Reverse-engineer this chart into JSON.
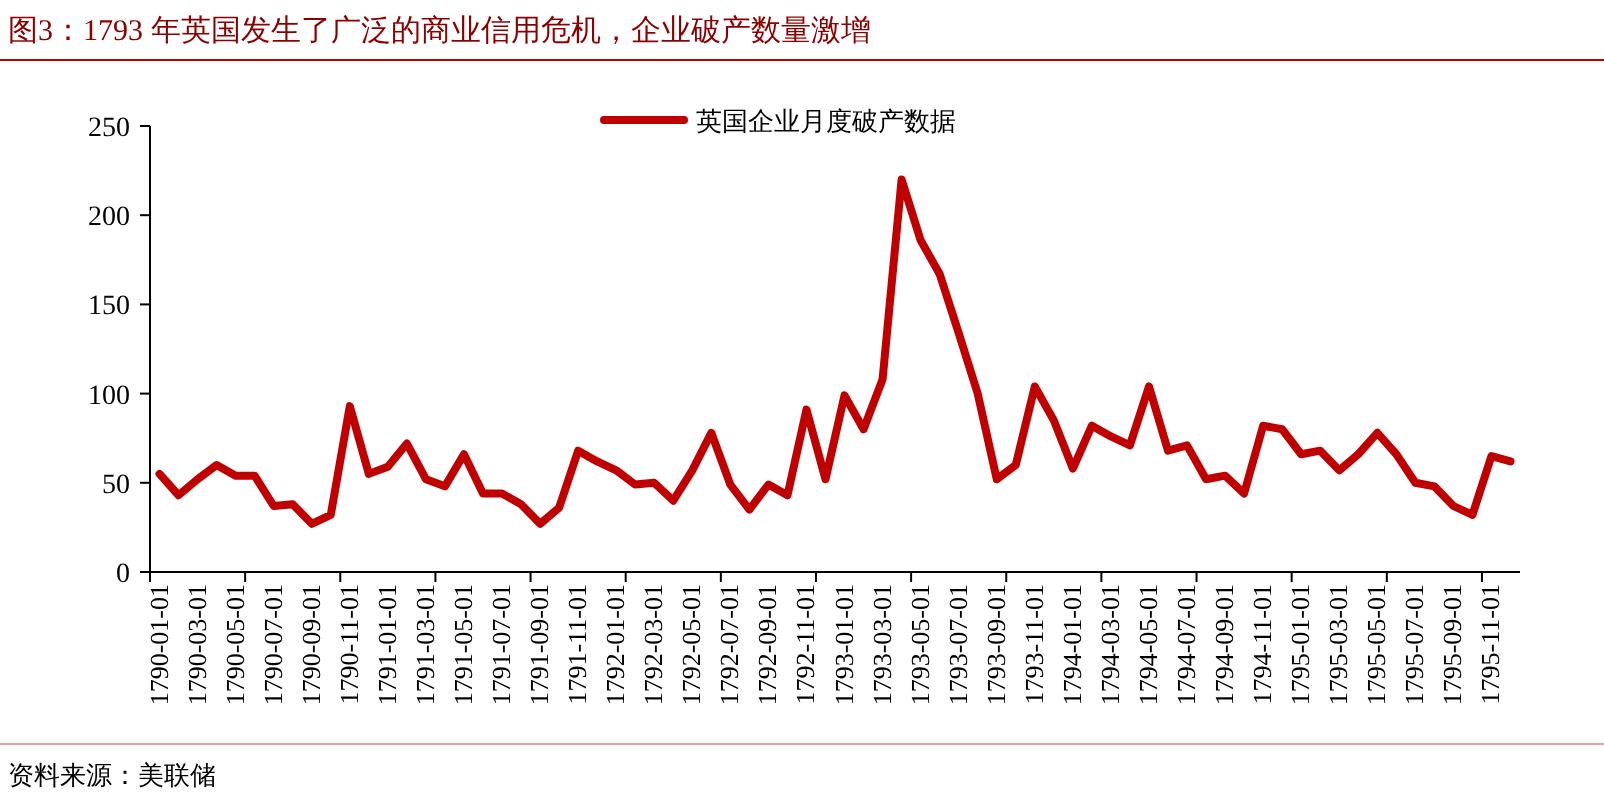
{
  "chart_data": {
    "type": "line",
    "title": "图3：1793 年英国发生了广泛的商业信用危机，企业破产数量激增",
    "categories": [
      "1790-01-01",
      null,
      "1790-03-01",
      null,
      "1790-05-01",
      null,
      "1790-07-01",
      null,
      "1790-09-01",
      null,
      "1790-11-01",
      null,
      "1791-01-01",
      null,
      "1791-03-01",
      null,
      "1791-05-01",
      null,
      "1791-07-01",
      null,
      "1791-09-01",
      null,
      "1791-11-01",
      null,
      "1792-01-01",
      null,
      "1792-03-01",
      null,
      "1792-05-01",
      null,
      "1792-07-01",
      null,
      "1792-09-01",
      null,
      "1792-11-01",
      null,
      "1793-01-01",
      null,
      "1793-03-01",
      null,
      "1793-05-01",
      null,
      "1793-07-01",
      null,
      "1793-09-01",
      null,
      "1793-11-01",
      null,
      "1794-01-01",
      null,
      "1794-03-01",
      null,
      "1794-05-01",
      null,
      "1794-07-01",
      null,
      "1794-09-01",
      null,
      "1794-11-01",
      null,
      "1795-01-01",
      null,
      "1795-03-01",
      null,
      "1795-05-01",
      null,
      "1795-07-01",
      null,
      "1795-09-01",
      null,
      "1795-11-01",
      null
    ],
    "series": [
      {
        "name": "英国企业月度破产数据",
        "color": "#c00000",
        "values": [
          55,
          43,
          52,
          60,
          54,
          54,
          37,
          38,
          27,
          32,
          93,
          55,
          59,
          72,
          52,
          48,
          66,
          44,
          44,
          38,
          27,
          36,
          68,
          62,
          57,
          49,
          50,
          40,
          57,
          78,
          49,
          35,
          49,
          43,
          91,
          52,
          99,
          80,
          108,
          220,
          186,
          167,
          134,
          100,
          52,
          60,
          104,
          85,
          58,
          82,
          76,
          71,
          104,
          68,
          71,
          52,
          54,
          44,
          82,
          80,
          66,
          68,
          57,
          66,
          78,
          66,
          50,
          48,
          37,
          32,
          65,
          62
        ]
      }
    ],
    "ylim": [
      0,
      250
    ],
    "yticks": [
      0,
      50,
      100,
      150,
      200,
      250
    ],
    "grid": false,
    "legend": "top",
    "marker": "none",
    "line_style": "solid",
    "annotations": [
      "资料来源：美联储"
    ]
  }
}
